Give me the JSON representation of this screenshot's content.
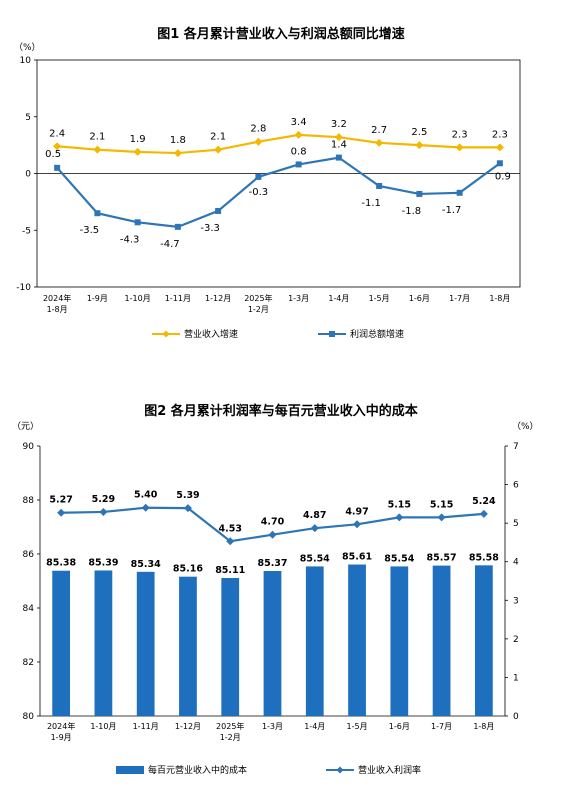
{
  "charts": [
    {
      "title": "图1 各月累计营业收入与利润总额同比增速",
      "y_unit": "（%）",
      "legend": [
        "营业收入增速",
        "利润总额增速"
      ]
    },
    {
      "title": "图2 各月累计利润率与每百元营业收入中的成本",
      "y_left_unit": "（元）",
      "y_right_unit": "（%）",
      "legend": [
        "每百元营业收入中的成本",
        "营业收入利润率"
      ]
    }
  ],
  "chart_data": [
    {
      "type": "line",
      "title": "图1 各月累计营业收入与利润总额同比增速",
      "ylabel": "（%）",
      "ylim": [
        -10,
        10
      ],
      "yticks": [
        10,
        5,
        0,
        -5,
        -10
      ],
      "grid": false,
      "legend_position": "bottom",
      "categories": [
        [
          "2024年",
          "1-8月"
        ],
        [
          "1-9月"
        ],
        [
          "1-10月"
        ],
        [
          "1-11月"
        ],
        [
          "1-12月"
        ],
        [
          "2025年",
          "1-2月"
        ],
        [
          "1-3月"
        ],
        [
          "1-4月"
        ],
        [
          "1-5月"
        ],
        [
          "1-6月"
        ],
        [
          "1-7月"
        ],
        [
          "1-8月"
        ]
      ],
      "series": [
        {
          "name": "营业收入增速",
          "color": "#f5b800",
          "values": [
            2.4,
            2.1,
            1.9,
            1.8,
            2.1,
            2.8,
            3.4,
            3.2,
            2.7,
            2.5,
            2.3,
            2.3
          ],
          "labels": [
            "2.4",
            "2.1",
            "1.9",
            "1.8",
            "2.1",
            "2.8",
            "3.4",
            "3.2",
            "2.7",
            "2.5",
            "2.3",
            "2.3"
          ]
        },
        {
          "name": "利润总额增速",
          "color": "#2e75b6",
          "values": [
            0.5,
            -3.5,
            -4.3,
            -4.7,
            -3.3,
            -0.3,
            0.8,
            1.4,
            -1.1,
            -1.8,
            -1.7,
            0.9
          ],
          "labels": [
            "0.5",
            "-3.5",
            "-4.3",
            "-4.7",
            "-3.3",
            "-0.3",
            "0.8",
            "1.4",
            "-1.1",
            "-1.8",
            "-1.7",
            "0.9"
          ]
        }
      ]
    },
    {
      "type": "bar",
      "title": "图2 各月累计利润率与每百元营业收入中的成本",
      "ylabel": "（元）",
      "ylabel_right": "（%）",
      "ylim": [
        80,
        90
      ],
      "yticks": [
        90,
        88,
        86,
        84,
        82,
        80
      ],
      "ylim_right": [
        0,
        7
      ],
      "yticks_right": [
        7,
        6,
        5,
        4,
        3,
        2,
        1,
        0
      ],
      "grid": false,
      "legend_position": "bottom",
      "categories": [
        [
          "2024年",
          "1-9月"
        ],
        [
          "1-10月"
        ],
        [
          "1-11月"
        ],
        [
          "1-12月"
        ],
        [
          "2025年",
          "1-2月"
        ],
        [
          "1-3月"
        ],
        [
          "1-4月"
        ],
        [
          "1-5月"
        ],
        [
          "1-6月"
        ],
        [
          "1-7月"
        ],
        [
          "1-8月"
        ]
      ],
      "series": [
        {
          "name": "每百元营业收入中的成本",
          "type": "bar",
          "axis": "left",
          "color": "#1f6fbf",
          "values": [
            85.38,
            85.39,
            85.34,
            85.16,
            85.11,
            85.37,
            85.54,
            85.61,
            85.54,
            85.57,
            85.58
          ],
          "labels": [
            "85.38",
            "85.39",
            "85.34",
            "85.16",
            "85.11",
            "85.37",
            "85.54",
            "85.61",
            "85.54",
            "85.57",
            "85.58"
          ]
        },
        {
          "name": "营业收入利润率",
          "type": "line",
          "axis": "right",
          "color": "#2e75b6",
          "values": [
            5.27,
            5.29,
            5.4,
            5.39,
            4.53,
            4.7,
            4.87,
            4.97,
            5.15,
            5.15,
            5.24
          ],
          "labels": [
            "5.27",
            "5.29",
            "5.40",
            "5.39",
            "4.53",
            "4.70",
            "4.87",
            "4.97",
            "5.15",
            "5.15",
            "5.24"
          ]
        }
      ]
    }
  ]
}
